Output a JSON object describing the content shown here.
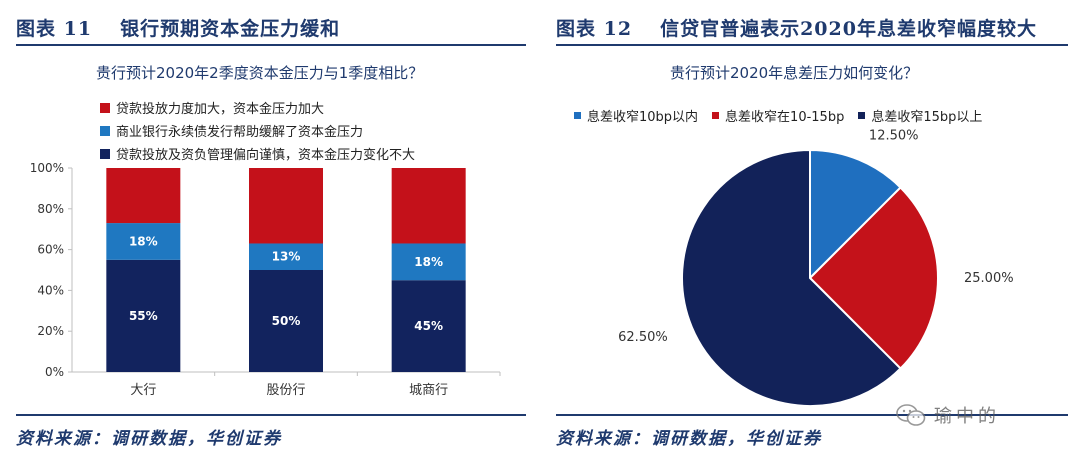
{
  "left": {
    "header": {
      "number": "图表 11",
      "title": "银行预期资本金压力缓和"
    },
    "source": "资料来源：调研数据，华创证券",
    "chart_data": {
      "type": "bar",
      "stacked": true,
      "title": "贵行预计2020年2季度资本金压力与1季度相比？",
      "categories": [
        "大行",
        "股份行",
        "城商行"
      ],
      "series": [
        {
          "name": "贷款投放及资负管理偏向谨慎，资本金压力变化不大",
          "color": "#12235e",
          "values": [
            55,
            50,
            45
          ],
          "labels": [
            "55%",
            "50%",
            "45%"
          ]
        },
        {
          "name": "商业银行永续债发行帮助缓解了资本金压力",
          "color": "#1f78c1",
          "values": [
            18,
            13,
            18
          ],
          "labels": [
            "18%",
            "13%",
            "18%"
          ]
        },
        {
          "name": "贷款投放力度加大，资本金压力加大",
          "color": "#c4111a",
          "values": [
            27,
            37,
            37
          ],
          "labels": [
            "",
            "",
            ""
          ]
        }
      ],
      "legend_order": [
        2,
        1,
        0
      ],
      "yticks": [
        "0%",
        "20%",
        "40%",
        "60%",
        "80%",
        "100%"
      ],
      "ylim": [
        0,
        100
      ],
      "grid": false,
      "legend_position": "top-left"
    }
  },
  "right": {
    "header": {
      "number": "图表 12",
      "title": "信贷官普遍表示2020年息差收窄幅度较大"
    },
    "source": "资料来源：调研数据，华创证券",
    "chart_data": {
      "type": "pie",
      "title": "贵行预计2020年息差压力如何变化？",
      "slices": [
        {
          "name": "息差收窄10bp以内",
          "value": 12.5,
          "label": "12.50%",
          "color": "#1f6fbf"
        },
        {
          "name": "息差收窄在10-15bp",
          "value": 25.0,
          "label": "25.00%",
          "color": "#c4121a"
        },
        {
          "name": "息差收窄15bp以上",
          "value": 62.5,
          "label": "62.50%",
          "color": "#122259"
        }
      ],
      "legend_position": "top"
    }
  },
  "watermark": {
    "text": "瑜中的"
  }
}
